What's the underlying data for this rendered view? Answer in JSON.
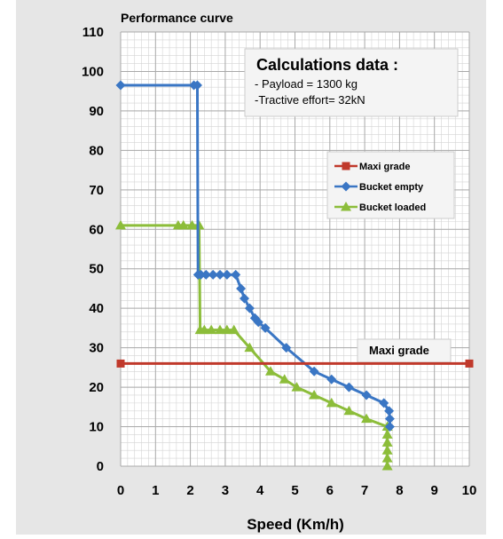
{
  "chart_data": {
    "type": "line",
    "title": "Performance curve",
    "xlabel": "Speed (Km/h)",
    "ylabel": "",
    "xlim": [
      0,
      10
    ],
    "ylim": [
      0,
      110
    ],
    "x_ticks": [
      "0",
      "1",
      "2",
      "3",
      "4",
      "5",
      "6",
      "7",
      "8",
      "9",
      "10"
    ],
    "y_ticks": [
      "0",
      "10",
      "20",
      "30",
      "40",
      "50",
      "60",
      "70",
      "80",
      "90",
      "100",
      "110"
    ],
    "grid": true,
    "legend_position": "right",
    "series": [
      {
        "name": "Maxi grade",
        "color": "#c0392b",
        "marker": "square",
        "points": [
          [
            0,
            26
          ],
          [
            10,
            26
          ]
        ]
      },
      {
        "name": "Bucket empty",
        "color": "#3a76c4",
        "marker": "diamond",
        "points": [
          [
            0,
            96.5
          ],
          [
            2.1,
            96.5
          ],
          [
            2.2,
            96.5
          ],
          [
            2.22,
            48.5
          ],
          [
            2.3,
            48.5
          ],
          [
            2.45,
            48.5
          ],
          [
            2.65,
            48.5
          ],
          [
            2.85,
            48.5
          ],
          [
            3.05,
            48.5
          ],
          [
            3.3,
            48.5
          ],
          [
            3.45,
            45
          ],
          [
            3.55,
            42.5
          ],
          [
            3.7,
            40
          ],
          [
            3.85,
            37.5
          ],
          [
            3.95,
            36.5
          ],
          [
            4.15,
            35
          ],
          [
            4.75,
            30
          ],
          [
            5.55,
            24
          ],
          [
            6.05,
            22
          ],
          [
            6.55,
            20
          ],
          [
            7.05,
            18
          ],
          [
            7.55,
            16
          ],
          [
            7.7,
            14
          ],
          [
            7.72,
            12
          ],
          [
            7.72,
            10
          ]
        ]
      },
      {
        "name": "Bucket loaded",
        "color": "#8cbd3a",
        "marker": "triangle",
        "points": [
          [
            0,
            61
          ],
          [
            1.65,
            61
          ],
          [
            1.8,
            61
          ],
          [
            2.05,
            61
          ],
          [
            2.25,
            61
          ],
          [
            2.28,
            34.5
          ],
          [
            2.4,
            34.5
          ],
          [
            2.6,
            34.5
          ],
          [
            2.85,
            34.5
          ],
          [
            3.05,
            34.5
          ],
          [
            3.25,
            34.5
          ],
          [
            3.7,
            30
          ],
          [
            4.3,
            24
          ],
          [
            4.7,
            22
          ],
          [
            5.05,
            20
          ],
          [
            5.55,
            18
          ],
          [
            6.05,
            16
          ],
          [
            6.55,
            14
          ],
          [
            7.05,
            12
          ],
          [
            7.65,
            10
          ],
          [
            7.65,
            8
          ],
          [
            7.65,
            6
          ],
          [
            7.65,
            4
          ],
          [
            7.65,
            2
          ],
          [
            7.65,
            0
          ]
        ]
      }
    ],
    "annotations": {
      "maxi_grade_label": "Maxi grade",
      "calc_title": "Calculations data :",
      "calc_lines": [
        "- Payload = 1300 kg",
        "-Tractive effort= 32kN"
      ]
    }
  }
}
